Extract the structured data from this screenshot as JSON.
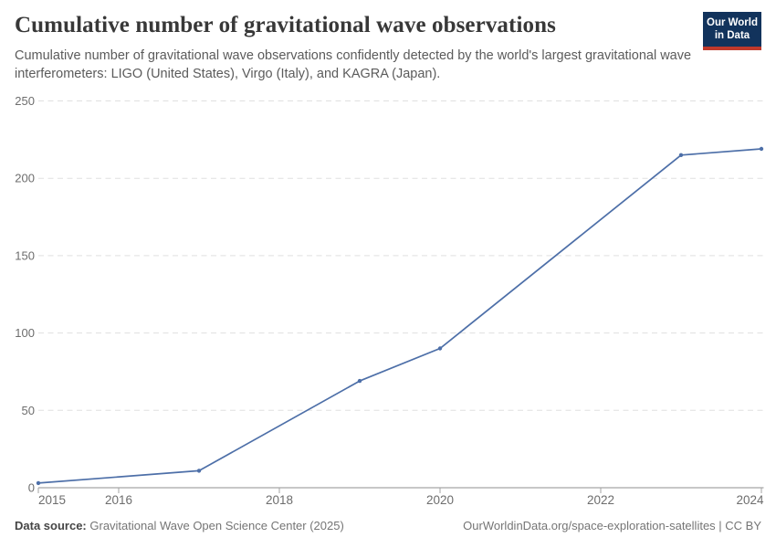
{
  "header": {
    "title": "Cumulative number of gravitational wave observations",
    "subtitle": "Cumulative number of gravitational wave observations confidently detected by the world's largest gravitational wave interferometers: LIGO (United States), Virgo (Italy), and KAGRA (Japan)."
  },
  "logo": {
    "line1": "Our World",
    "line2": "in Data",
    "bg_color": "#12335c",
    "accent_color": "#c0392b"
  },
  "chart_data": {
    "type": "line",
    "title": "Cumulative number of gravitational wave observations",
    "series": [
      {
        "name": "Cumulative gravitational wave observations",
        "x": [
          2015,
          2017,
          2019,
          2020,
          2023,
          2024
        ],
        "values": [
          3,
          11,
          69,
          90,
          215,
          219
        ]
      }
    ],
    "xlabel": "",
    "ylabel": "",
    "xlim": [
      2015,
      2024
    ],
    "ylim": [
      0,
      250
    ],
    "x_ticks": [
      2015,
      2016,
      2018,
      2020,
      2022,
      2024
    ],
    "y_ticks": [
      0,
      50,
      100,
      150,
      200,
      250
    ],
    "grid": "horizontal-dashed",
    "legend": "none",
    "line_color": "#4d6fa8",
    "gridline_color": "#e0e0e0",
    "axis_color": "#8f8f8f",
    "tick_label_color": "#6d6d6d"
  },
  "footer": {
    "datasource_label": "Data source:",
    "datasource_value": "Gravitational Wave Open Science Center (2025)",
    "attribution": "OurWorldinData.org/space-exploration-satellites | CC BY"
  }
}
